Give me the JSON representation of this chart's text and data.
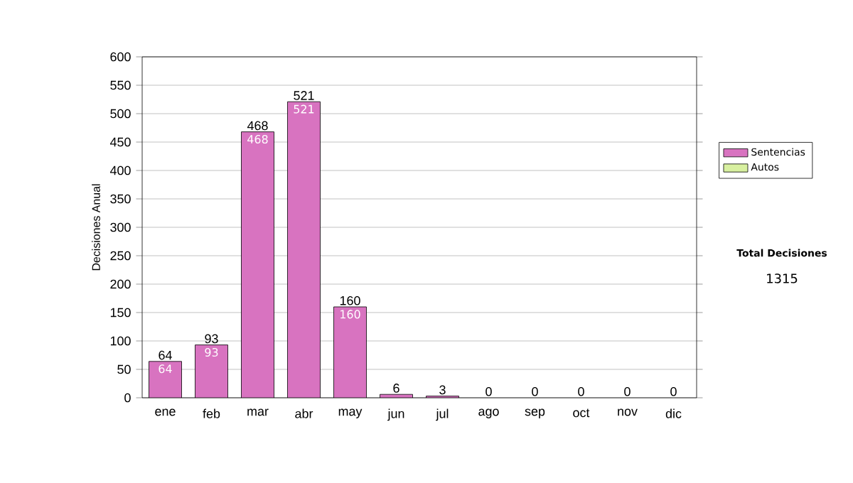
{
  "chart_data": {
    "type": "bar",
    "stacked": true,
    "ylabel": "Decisiones Anual",
    "categories": [
      "ene",
      "feb",
      "mar",
      "abr",
      "may",
      "jun",
      "jul",
      "ago",
      "sep",
      "oct",
      "nov",
      "dic"
    ],
    "series": [
      {
        "name": "Sentencias",
        "color": "#d873c0",
        "values": [
          64,
          93,
          468,
          521,
          160,
          6,
          3,
          0,
          0,
          0,
          0,
          0
        ],
        "value_labels": [
          "64",
          "93",
          "468",
          "521",
          "160",
          null,
          null,
          null,
          null,
          null,
          null,
          null
        ]
      },
      {
        "name": "Autos",
        "color": "#d8f0a0",
        "values": [
          0,
          0,
          0,
          0,
          0,
          0,
          0,
          0,
          0,
          0,
          0,
          0
        ]
      }
    ],
    "totals": [
      "64",
      "93",
      "468",
      "521",
      "160",
      "6",
      "3",
      "0",
      "0",
      "0",
      "0",
      "0"
    ],
    "ylim": [
      0,
      600
    ],
    "yticks": [
      0,
      50,
      100,
      150,
      200,
      250,
      300,
      350,
      400,
      450,
      500,
      550,
      600
    ],
    "grid": "y",
    "legend": "right",
    "annotations": [
      "Total Decisiones",
      "1315"
    ]
  }
}
